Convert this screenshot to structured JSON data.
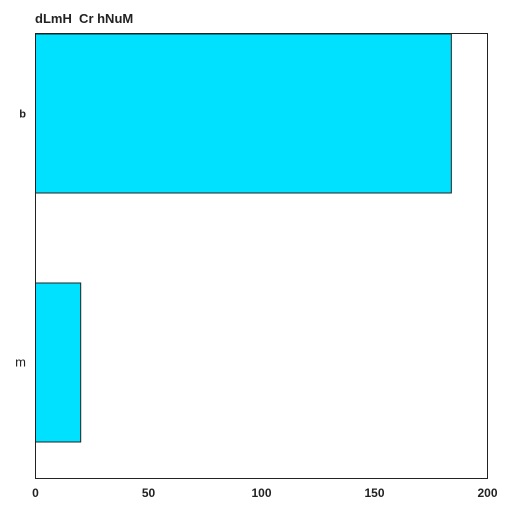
{
  "chart_data": {
    "type": "bar",
    "orientation": "horizontal",
    "title": "dLmH  Cr hNuM",
    "xlabel": "",
    "ylabel": "",
    "categories": [
      "b",
      "m"
    ],
    "values": [
      184,
      20
    ],
    "xlim": [
      0,
      200
    ],
    "xticks": [
      0,
      50,
      100,
      150,
      200
    ],
    "grid": false,
    "bar_color": "#00e1ff",
    "edge_color": "#222222"
  }
}
